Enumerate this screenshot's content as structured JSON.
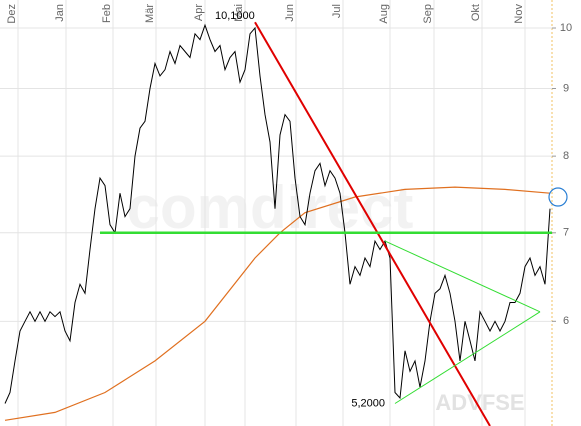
{
  "chart_data": {
    "type": "line",
    "log_scale": true,
    "grid": true,
    "xlim": [
      -1,
      109.4
    ],
    "ylim": [
      5,
      10.5
    ],
    "yticks": [
      6,
      7,
      8,
      9,
      10
    ],
    "xticks": [
      {
        "value": 2.6,
        "label": "Dez"
      },
      {
        "value": 12.2,
        "label": "Jan"
      },
      {
        "value": 21.6,
        "label": "Feb"
      },
      {
        "value": 30.2,
        "label": "Mär"
      },
      {
        "value": 40,
        "label": "Apr"
      },
      {
        "value": 48,
        "label": "Mai"
      },
      {
        "value": 58.2,
        "label": "Jun"
      },
      {
        "value": 67.6,
        "label": "Jul"
      },
      {
        "value": 77,
        "label": "Aug"
      },
      {
        "value": 85.8,
        "label": "Sep"
      },
      {
        "value": 95.4,
        "label": "Okt"
      },
      {
        "value": 104,
        "label": "Nov"
      }
    ],
    "series": [
      {
        "color": "#000000",
        "width": 1,
        "x": [
          0,
          1,
          2,
          3,
          4,
          5,
          6,
          7,
          8,
          9,
          10,
          11,
          12,
          13,
          14,
          15,
          16,
          17,
          18,
          19,
          20,
          21,
          22,
          23,
          24,
          25,
          26,
          27,
          28,
          29,
          30,
          31,
          32,
          33,
          34,
          35,
          36,
          37,
          38,
          39,
          40,
          41,
          42,
          43,
          44,
          45,
          46,
          47,
          48,
          49,
          50,
          51,
          52,
          53,
          54,
          55,
          56,
          57,
          58,
          59,
          60,
          61,
          62,
          63,
          64,
          65,
          66,
          67,
          68,
          69,
          70,
          71,
          72,
          73,
          74,
          75,
          76,
          77,
          78,
          79,
          80,
          81,
          82,
          83,
          84,
          85,
          86,
          87,
          88,
          89,
          90,
          91,
          92,
          93,
          94,
          95,
          96,
          97,
          98,
          99,
          100,
          101,
          102,
          103,
          104,
          105,
          106,
          107,
          108,
          109
        ],
        "values": [
          5.2,
          5.3,
          5.6,
          5.9,
          6.0,
          6.1,
          6.0,
          6.1,
          6.0,
          6.1,
          6.05,
          6.1,
          5.9,
          5.8,
          6.2,
          6.4,
          6.3,
          6.8,
          7.3,
          7.7,
          7.6,
          7.1,
          7.0,
          7.5,
          7.2,
          7.3,
          8.0,
          8.4,
          8.5,
          9.0,
          9.4,
          9.2,
          9.3,
          9.6,
          9.4,
          9.7,
          9.6,
          9.5,
          9.9,
          9.8,
          10.05,
          9.8,
          9.6,
          9.7,
          9.3,
          9.5,
          9.6,
          9.1,
          9.3,
          9.9,
          10.0,
          9.2,
          8.6,
          8.2,
          7.3,
          8.3,
          8.6,
          8.5,
          7.7,
          7.2,
          7.1,
          7.5,
          7.8,
          7.9,
          7.6,
          7.8,
          7.7,
          7.5,
          7.0,
          6.4,
          6.6,
          6.5,
          6.7,
          6.6,
          6.9,
          6.8,
          6.9,
          6.7,
          5.3,
          5.25,
          5.7,
          5.5,
          5.6,
          5.35,
          5.6,
          6.0,
          6.3,
          6.35,
          6.5,
          6.3,
          6.0,
          5.6,
          6.0,
          5.8,
          5.6,
          6.1,
          6.0,
          5.9,
          6.0,
          5.9,
          6.0,
          6.2,
          6.2,
          6.3,
          6.6,
          6.7,
          6.5,
          6.6,
          6.4,
          7.3
        ]
      },
      {
        "color": "#e07020",
        "width": 1.2,
        "x": [
          0,
          10,
          20,
          30,
          40,
          50,
          55,
          60,
          70,
          80,
          90,
          100,
          109
        ],
        "values": [
          5.05,
          5.12,
          5.3,
          5.6,
          6.0,
          6.7,
          7.0,
          7.25,
          7.45,
          7.55,
          7.58,
          7.55,
          7.5
        ]
      },
      {
        "color": "#e00000",
        "width": 2,
        "x": [
          50,
          97
        ],
        "values": [
          10.1,
          5.0
        ]
      },
      {
        "color": "#33dd33",
        "width": 2.5,
        "x": [
          19,
          109.4
        ],
        "values": [
          7.0,
          7.0
        ]
      },
      {
        "color": "#33dd33",
        "width": 1,
        "x": [
          76,
          107
        ],
        "values": [
          6.9,
          6.1
        ]
      },
      {
        "color": "#33dd33",
        "width": 1,
        "x": [
          78,
          107
        ],
        "values": [
          5.2,
          6.1
        ]
      }
    ],
    "annotations": [
      {
        "text": "10,1000",
        "x": 50,
        "y": 10.1
      },
      {
        "text": "5,2000",
        "x": 78,
        "y": 5.2
      }
    ],
    "highlight": {
      "x": 110.6,
      "value": 7.45,
      "color": "#2a7fd4"
    },
    "watermark": "comdirect",
    "source": "ADVFSE"
  }
}
